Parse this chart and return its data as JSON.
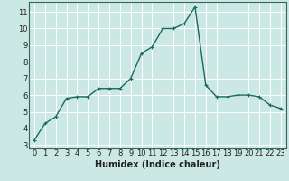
{
  "x": [
    0,
    1,
    2,
    3,
    4,
    5,
    6,
    7,
    8,
    9,
    10,
    11,
    12,
    13,
    14,
    15,
    16,
    17,
    18,
    19,
    20,
    21,
    22,
    23
  ],
  "y": [
    3.3,
    4.3,
    4.7,
    5.8,
    5.9,
    5.9,
    6.4,
    6.4,
    6.4,
    7.0,
    8.5,
    8.9,
    10.0,
    10.0,
    10.3,
    11.3,
    6.6,
    5.9,
    5.9,
    6.0,
    6.0,
    5.9,
    5.4,
    5.2
  ],
  "line_color": "#1a6b5a",
  "marker": "+",
  "marker_size": 3,
  "linewidth": 1.0,
  "bg_color": "#cce8e4",
  "grid_color": "#ffffff",
  "xlabel": "Humidex (Indice chaleur)",
  "xlabel_fontsize": 7,
  "tick_fontsize": 6,
  "xlim": [
    -0.5,
    23.5
  ],
  "ylim": [
    2.8,
    11.6
  ],
  "yticks": [
    3,
    4,
    5,
    6,
    7,
    8,
    9,
    10,
    11
  ],
  "xticks": [
    0,
    1,
    2,
    3,
    4,
    5,
    6,
    7,
    8,
    9,
    10,
    11,
    12,
    13,
    14,
    15,
    16,
    17,
    18,
    19,
    20,
    21,
    22,
    23
  ],
  "axis_color": "#336655",
  "tick_color": "#222222",
  "grid_linewidth": 0.7
}
